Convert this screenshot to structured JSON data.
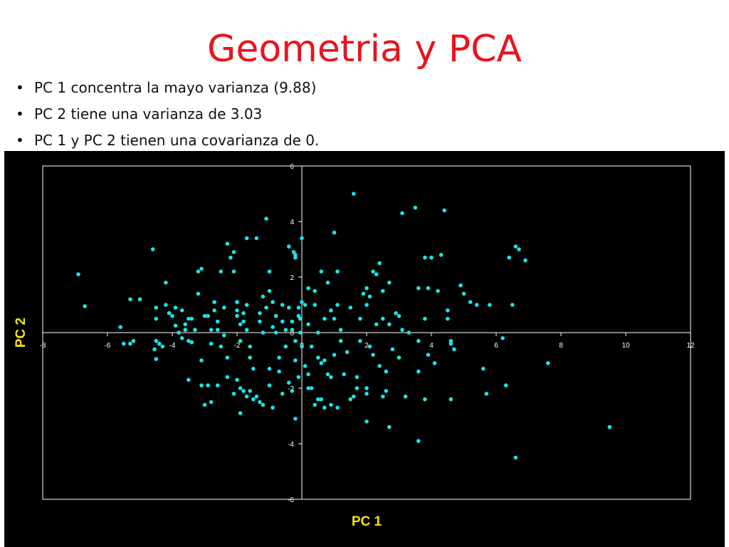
{
  "slide": {
    "title": "Geometria y PCA",
    "bullets": [
      "PC 1 concentra la mayo varianza (9.88)",
      "PC 2 tiene una varianza de 3.03",
      "PC 1 y PC 2 tienen una covarianza de 0."
    ],
    "bullet_glyph": "•"
  },
  "colors": {
    "title": "#e8141e",
    "chart_background": "#000000",
    "axes": "#ffffff",
    "points": "#19e6e6",
    "axis_titles": "#f5e312"
  },
  "chart_data": {
    "type": "scatter",
    "title": "",
    "xlabel": "PC 1",
    "ylabel": "PC 2",
    "xlim": [
      -8,
      12
    ],
    "ylim": [
      -6,
      6
    ],
    "xticks": [
      -8,
      -6,
      -4,
      -2,
      0,
      2,
      4,
      6,
      8,
      10,
      12
    ],
    "yticks": [
      -6,
      -4,
      -2,
      0,
      2,
      4,
      6
    ],
    "grid": false,
    "legend": "none",
    "points": [
      [
        -6.9,
        2.1
      ],
      [
        -6.7,
        0.95
      ],
      [
        -5.6,
        0.2
      ],
      [
        -5.5,
        -0.4
      ],
      [
        -5.3,
        -0.4
      ],
      [
        -5.2,
        -0.3
      ],
      [
        -5.3,
        1.2
      ],
      [
        -5.0,
        1.2
      ],
      [
        -4.6,
        3.0
      ],
      [
        -4.5,
        0.9
      ],
      [
        -4.5,
        0.5
      ],
      [
        -4.5,
        -0.3
      ],
      [
        -4.55,
        -0.6
      ],
      [
        -4.5,
        -0.95
      ],
      [
        -4.4,
        -0.4
      ],
      [
        -4.3,
        -0.5
      ],
      [
        -4.2,
        1.8
      ],
      [
        -4.2,
        1.0
      ],
      [
        -4.1,
        0.7
      ],
      [
        -4.0,
        0.6
      ],
      [
        -3.9,
        0.9
      ],
      [
        -3.9,
        0.25
      ],
      [
        -3.8,
        0.0
      ],
      [
        -3.7,
        0.8
      ],
      [
        -3.7,
        -0.2
      ],
      [
        -3.6,
        0.3
      ],
      [
        -3.6,
        0.1
      ],
      [
        -3.5,
        0.5
      ],
      [
        -3.4,
        0.5
      ],
      [
        -3.5,
        -0.3
      ],
      [
        -3.4,
        -0.35
      ],
      [
        -3.3,
        0.1
      ],
      [
        -3.2,
        2.2
      ],
      [
        -3.2,
        1.4
      ],
      [
        -3.1,
        2.3
      ],
      [
        -3.1,
        -1.0
      ],
      [
        -3.0,
        0.6
      ],
      [
        -2.9,
        0.6
      ],
      [
        -2.8,
        0.1
      ],
      [
        -2.8,
        -0.4
      ],
      [
        -2.7,
        1.1
      ],
      [
        -2.7,
        0.8
      ],
      [
        -2.6,
        0.4
      ],
      [
        -2.6,
        0.1
      ],
      [
        -2.5,
        2.2
      ],
      [
        -2.5,
        -0.5
      ],
      [
        -2.4,
        0.9
      ],
      [
        -2.4,
        -0.1
      ],
      [
        -2.3,
        3.2
      ],
      [
        -2.3,
        -0.9
      ],
      [
        -2.2,
        2.7
      ],
      [
        -2.1,
        2.9
      ],
      [
        -2.1,
        2.2
      ],
      [
        -2.0,
        1.1
      ],
      [
        -2.0,
        0.8
      ],
      [
        -2.0,
        0.6
      ],
      [
        -1.9,
        0.3
      ],
      [
        -1.9,
        -0.3
      ],
      [
        -1.8,
        0.7
      ],
      [
        -1.8,
        0.4
      ],
      [
        -1.7,
        3.4
      ],
      [
        -1.7,
        1.0
      ],
      [
        -1.7,
        0.1
      ],
      [
        -1.6,
        -0.5
      ],
      [
        -1.6,
        -0.9
      ],
      [
        -1.5,
        -1.3
      ],
      [
        -1.4,
        3.4
      ],
      [
        -1.3,
        0.7
      ],
      [
        -1.3,
        0.4
      ],
      [
        -1.2,
        1.3
      ],
      [
        -1.2,
        0.0
      ],
      [
        -1.1,
        4.1
      ],
      [
        -1.1,
        0.9
      ],
      [
        -1.0,
        2.2
      ],
      [
        -1.0,
        1.5
      ],
      [
        -1.0,
        -1.3
      ],
      [
        -0.9,
        1.1
      ],
      [
        -0.9,
        0.2
      ],
      [
        -0.8,
        0.6
      ],
      [
        -0.8,
        0.0
      ],
      [
        -0.7,
        -1.4
      ],
      [
        -0.7,
        -0.9
      ],
      [
        -0.6,
        1.0
      ],
      [
        -0.6,
        0.4
      ],
      [
        -0.5,
        0.1
      ],
      [
        -0.5,
        -0.5
      ],
      [
        -0.4,
        3.1
      ],
      [
        -0.4,
        0.9
      ],
      [
        -0.3,
        0.4
      ],
      [
        -0.3,
        0.1
      ],
      [
        -0.2,
        -0.3
      ],
      [
        -0.2,
        -1.0
      ],
      [
        -0.1,
        0.6
      ],
      [
        -0.1,
        -1.6
      ],
      [
        0.0,
        1.1
      ],
      [
        -0.2,
        2.8
      ],
      [
        -0.25,
        2.9
      ],
      [
        -0.2,
        2.7
      ],
      [
        -0.1,
        0.9
      ],
      [
        -0.05,
        0.5
      ],
      [
        -0.05,
        0.0
      ],
      [
        0.0,
        -0.5
      ],
      [
        0.0,
        3.4
      ],
      [
        0.1,
        1.0
      ],
      [
        0.1,
        -1.2
      ],
      [
        0.2,
        1.6
      ],
      [
        0.2,
        0.3
      ],
      [
        0.2,
        -1.5
      ],
      [
        0.3,
        -0.5
      ],
      [
        0.3,
        -2.0
      ],
      [
        0.4,
        1.5
      ],
      [
        0.4,
        1.0
      ],
      [
        0.5,
        0.0
      ],
      [
        0.5,
        -0.9
      ],
      [
        0.6,
        2.2
      ],
      [
        0.6,
        -1.1
      ],
      [
        0.7,
        0.5
      ],
      [
        0.7,
        -1.0
      ],
      [
        0.8,
        1.8
      ],
      [
        0.8,
        -1.5
      ],
      [
        0.9,
        0.8
      ],
      [
        0.9,
        -1.6
      ],
      [
        1.0,
        3.6
      ],
      [
        1.0,
        0.5
      ],
      [
        1.0,
        -0.8
      ],
      [
        1.1,
        2.2
      ],
      [
        1.1,
        1.0
      ],
      [
        1.2,
        0.1
      ],
      [
        1.2,
        -0.3
      ],
      [
        1.3,
        -1.5
      ],
      [
        1.4,
        -0.7
      ],
      [
        1.5,
        0.9
      ],
      [
        1.6,
        5.0
      ],
      [
        1.6,
        -2.3
      ],
      [
        1.7,
        -1.6
      ],
      [
        1.8,
        0.5
      ],
      [
        1.8,
        -0.3
      ],
      [
        1.9,
        1.4
      ],
      [
        2.0,
        1.6
      ],
      [
        2.0,
        1.0
      ],
      [
        2.0,
        -2.0
      ],
      [
        2.0,
        -2.2
      ],
      [
        2.1,
        1.3
      ],
      [
        2.1,
        -0.5
      ],
      [
        2.2,
        2.2
      ],
      [
        2.2,
        -0.8
      ],
      [
        2.3,
        2.1
      ],
      [
        2.3,
        0.3
      ],
      [
        2.4,
        2.5
      ],
      [
        2.4,
        -1.2
      ],
      [
        2.5,
        1.5
      ],
      [
        2.5,
        0.5
      ],
      [
        2.6,
        -2.1
      ],
      [
        2.6,
        -1.4
      ],
      [
        2.7,
        1.8
      ],
      [
        2.7,
        0.3
      ],
      [
        2.8,
        -0.6
      ],
      [
        2.9,
        0.7
      ],
      [
        3.0,
        0.6
      ],
      [
        3.0,
        -0.9
      ],
      [
        3.1,
        4.3
      ],
      [
        3.1,
        0.1
      ],
      [
        3.2,
        -2.3
      ],
      [
        3.3,
        0.0
      ],
      [
        3.5,
        4.5
      ],
      [
        3.6,
        1.6
      ],
      [
        3.6,
        -0.3
      ],
      [
        3.6,
        -1.4
      ],
      [
        3.8,
        2.7
      ],
      [
        3.8,
        0.5
      ],
      [
        3.9,
        1.6
      ],
      [
        3.9,
        -0.8
      ],
      [
        4.0,
        2.7
      ],
      [
        4.1,
        -1.1
      ],
      [
        4.2,
        1.5
      ],
      [
        4.3,
        2.8
      ],
      [
        4.4,
        4.4
      ],
      [
        4.5,
        0.8
      ],
      [
        4.5,
        0.5
      ],
      [
        4.6,
        -0.3
      ],
      [
        4.6,
        -0.4
      ],
      [
        4.7,
        -0.6
      ],
      [
        4.9,
        1.7
      ],
      [
        5.0,
        1.4
      ],
      [
        5.2,
        1.1
      ],
      [
        5.4,
        1.0
      ],
      [
        5.6,
        -1.3
      ],
      [
        5.7,
        -2.2
      ],
      [
        5.8,
        1.0
      ],
      [
        6.2,
        -0.2
      ],
      [
        6.3,
        -1.9
      ],
      [
        6.4,
        2.7
      ],
      [
        6.5,
        1.0
      ],
      [
        6.6,
        3.1
      ],
      [
        6.7,
        3.0
      ],
      [
        6.9,
        2.6
      ],
      [
        7.6,
        -1.1
      ],
      [
        9.5,
        -3.4
      ],
      [
        -3.5,
        -1.7
      ],
      [
        -2.9,
        -1.9
      ],
      [
        -2.6,
        -1.9
      ],
      [
        -2.3,
        -1.6
      ],
      [
        -2.0,
        -1.7
      ],
      [
        -1.9,
        -2.0
      ],
      [
        -1.8,
        -2.1
      ],
      [
        -1.7,
        -2.3
      ],
      [
        -1.6,
        -2.1
      ],
      [
        -1.5,
        -2.4
      ],
      [
        -1.4,
        -2.3
      ],
      [
        -1.3,
        -2.5
      ],
      [
        -1.2,
        -2.6
      ],
      [
        -1.0,
        -1.9
      ],
      [
        -0.9,
        -2.7
      ],
      [
        -0.6,
        -2.2
      ],
      [
        -0.4,
        -1.8
      ],
      [
        -0.3,
        -2.1
      ],
      [
        0.2,
        -2.0
      ],
      [
        0.4,
        -2.6
      ],
      [
        0.5,
        -2.4
      ],
      [
        0.7,
        -2.7
      ],
      [
        0.9,
        -2.6
      ],
      [
        1.1,
        -2.7
      ],
      [
        1.5,
        -2.4
      ],
      [
        1.7,
        -2.0
      ],
      [
        2.0,
        -3.2
      ],
      [
        2.5,
        -2.3
      ],
      [
        2.7,
        -3.4
      ],
      [
        3.6,
        -3.9
      ],
      [
        4.6,
        -2.4
      ],
      [
        6.6,
        -4.5
      ],
      [
        -3.0,
        -2.6
      ],
      [
        -2.8,
        -2.5
      ],
      [
        -1.9,
        -2.9
      ],
      [
        -0.2,
        -3.1
      ],
      [
        0.6,
        -2.4
      ],
      [
        3.8,
        -2.4
      ],
      [
        -3.1,
        -1.9
      ],
      [
        -2.1,
        -2.2
      ]
    ]
  }
}
